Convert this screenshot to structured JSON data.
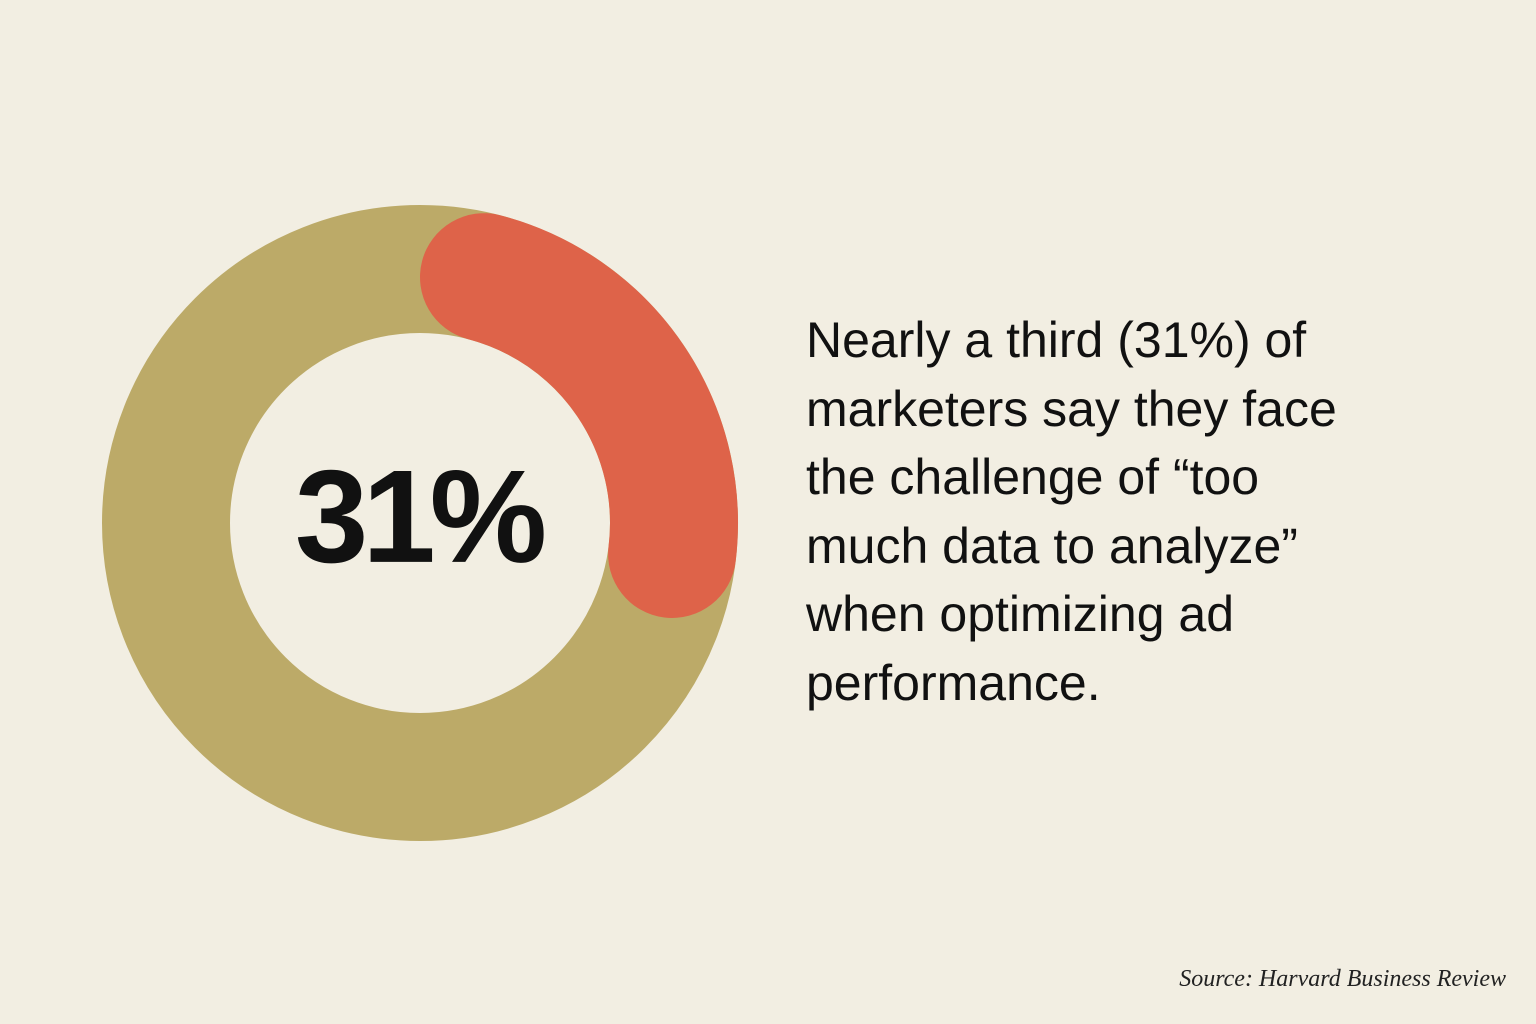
{
  "chart_data": {
    "type": "donut",
    "values": [
      31
    ],
    "value_labels": [
      "31%"
    ],
    "color": "#de6349",
    "track_color": "#bcaa68",
    "description": [
      "Nearly a third (31%) of",
      "marketers say they face",
      "the challenge of “too",
      "much data to analyze”",
      "when optimizing ad",
      "performance."
    ],
    "source": "Source: Harvard Business Review"
  }
}
